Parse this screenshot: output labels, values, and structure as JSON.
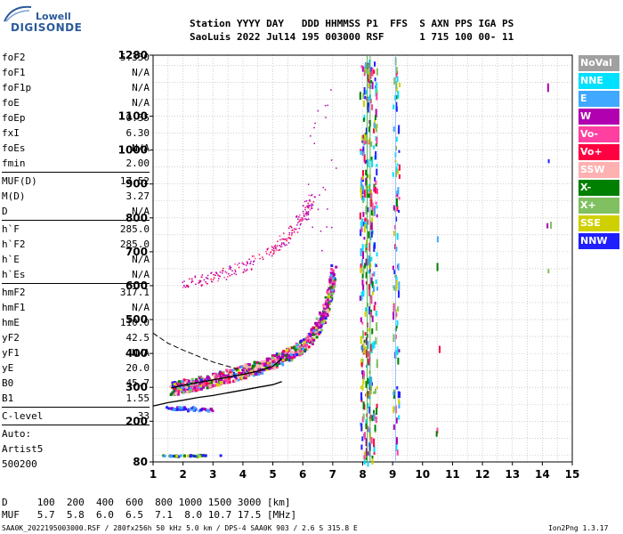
{
  "logo": {
    "line1": "Lowell",
    "line2": "DIGISONDE"
  },
  "header": {
    "row1": "Station YYYY DAY   DDD HHMMSS P1  FFS  S AXN PPS IGA PS",
    "row2": "SaoLuis 2022 Jul14 195 003000 RSF      1 715 100 00- 11"
  },
  "params_groups": [
    [
      {
        "label": "foF2",
        "value": "5.350"
      },
      {
        "label": "foF1",
        "value": "N/A"
      },
      {
        "label": "foF1p",
        "value": "N/A"
      },
      {
        "label": "foE",
        "value": "N/A"
      },
      {
        "label": "foEp",
        "value": "0.35"
      },
      {
        "label": "fxI",
        "value": "6.30"
      },
      {
        "label": "foEs",
        "value": "N/A"
      },
      {
        "label": "fmin",
        "value": "2.00"
      }
    ],
    [
      {
        "label": "MUF(D)",
        "value": "17.52"
      },
      {
        "label": "M(D)",
        "value": "3.27"
      },
      {
        "label": "D",
        "value": "N/A"
      }
    ],
    [
      {
        "label": "h`F",
        "value": "285.0"
      },
      {
        "label": "h`F2",
        "value": "285.0"
      },
      {
        "label": "h`E",
        "value": "N/A"
      },
      {
        "label": "h`Es",
        "value": "N/A"
      }
    ],
    [
      {
        "label": "hmF2",
        "value": "317.1"
      },
      {
        "label": "hmF1",
        "value": "N/A"
      },
      {
        "label": "hmE",
        "value": "110.0"
      },
      {
        "label": "yF2",
        "value": "42.5"
      },
      {
        "label": "yF1",
        "value": "N/A"
      },
      {
        "label": "yE",
        "value": "20.0"
      },
      {
        "label": "B0",
        "value": "45.7"
      },
      {
        "label": "B1",
        "value": "1.55"
      }
    ],
    [
      {
        "label": "C-level",
        "value": "33"
      }
    ]
  ],
  "auto_lines": [
    "Auto:",
    "Artist5",
    "500200"
  ],
  "legend": [
    {
      "label": "NoVal",
      "color": "#a0a0a0"
    },
    {
      "label": "NNE",
      "color": "#00e0ff"
    },
    {
      "label": "E",
      "color": "#40a8ff"
    },
    {
      "label": "W",
      "color": "#b000b0"
    },
    {
      "label": "Vo-",
      "color": "#ff40a0"
    },
    {
      "label": "Vo+",
      "color": "#ff0040"
    },
    {
      "label": "SSW",
      "color": "#ffb0b0"
    },
    {
      "label": "X-",
      "color": "#008000"
    },
    {
      "label": "X+",
      "color": "#80c060"
    },
    {
      "label": "SSE",
      "color": "#d0d000"
    },
    {
      "label": "NNW",
      "color": "#2020ff"
    }
  ],
  "footer": {
    "d_row": "D     100  200  400  600  800 1000 1500 3000 [km]",
    "muf_row": "MUF   5.7  5.8  6.0  6.5  7.1  8.0 10.7 17.5 [MHz]",
    "file_info": "SAA0K_2022195003000.RSF / 280fx256h 50 kHz 5.0 km / DPS-4 SAA0K 903 / 2.6 S 315.8 E",
    "version": "Ion2Png 1.3.17"
  },
  "chart_data": {
    "type": "scatter",
    "xlabel": "",
    "ylabel": "",
    "xlim": [
      1,
      15
    ],
    "ylim": [
      80,
      1280
    ],
    "x_ticks": [
      1,
      2,
      3,
      4,
      5,
      6,
      7,
      8,
      9,
      10,
      11,
      12,
      13,
      14,
      15
    ],
    "y_ticks": [
      80,
      200,
      300,
      400,
      500,
      600,
      700,
      800,
      900,
      1000,
      1100,
      1280
    ],
    "grid": true,
    "traces": [
      {
        "name": "F2 O-trace",
        "points": [
          [
            1.6,
            290
          ],
          [
            2.0,
            298
          ],
          [
            2.5,
            308
          ],
          [
            3.0,
            318
          ],
          [
            3.5,
            330
          ],
          [
            4.0,
            342
          ],
          [
            4.5,
            356
          ],
          [
            5.0,
            372
          ],
          [
            5.5,
            392
          ],
          [
            6.0,
            420
          ],
          [
            6.4,
            460
          ],
          [
            6.7,
            520
          ],
          [
            6.9,
            580
          ],
          [
            7.0,
            640
          ]
        ]
      },
      {
        "name": "F2 second hop",
        "points": [
          [
            2.0,
            600
          ],
          [
            3.0,
            620
          ],
          [
            4.0,
            650
          ],
          [
            5.0,
            700
          ],
          [
            5.6,
            750
          ],
          [
            6.0,
            800
          ],
          [
            6.3,
            850
          ]
        ]
      },
      {
        "name": "Es",
        "points": [
          [
            1.6,
            240
          ],
          [
            2.0,
            240
          ],
          [
            2.5,
            235
          ],
          [
            3.0,
            235
          ]
        ]
      },
      {
        "name": "E",
        "points": [
          [
            1.5,
            100
          ],
          [
            2.0,
            100
          ],
          [
            2.5,
            102
          ],
          [
            3.0,
            100
          ]
        ]
      }
    ],
    "profile": {
      "true_height": [
        [
          1.0,
          245
        ],
        [
          1.5,
          255
        ],
        [
          2.0,
          262
        ],
        [
          2.5,
          270
        ],
        [
          3.0,
          276
        ],
        [
          3.5,
          284
        ],
        [
          4.0,
          292
        ],
        [
          4.5,
          300
        ],
        [
          5.0,
          308
        ],
        [
          5.3,
          317
        ]
      ],
      "virtual_height": [
        [
          1.6,
          298
        ],
        [
          2.0,
          306
        ],
        [
          2.5,
          314
        ],
        [
          3.0,
          322
        ],
        [
          3.5,
          330
        ],
        [
          4.0,
          338
        ],
        [
          4.5,
          348
        ],
        [
          5.0,
          362
        ],
        [
          5.3,
          385
        ]
      ],
      "dashed": [
        [
          1.0,
          460
        ],
        [
          1.5,
          430
        ],
        [
          2.0,
          410
        ],
        [
          2.5,
          392
        ],
        [
          3.0,
          375
        ],
        [
          3.5,
          362
        ],
        [
          4.0,
          350
        ]
      ]
    },
    "vertical_lines": [
      8.15,
      8.25,
      9.1
    ],
    "interference_columns": [
      7.95,
      8.05,
      8.15,
      8.25,
      8.4,
      9.05,
      9.15,
      10.5,
      14.2
    ]
  }
}
